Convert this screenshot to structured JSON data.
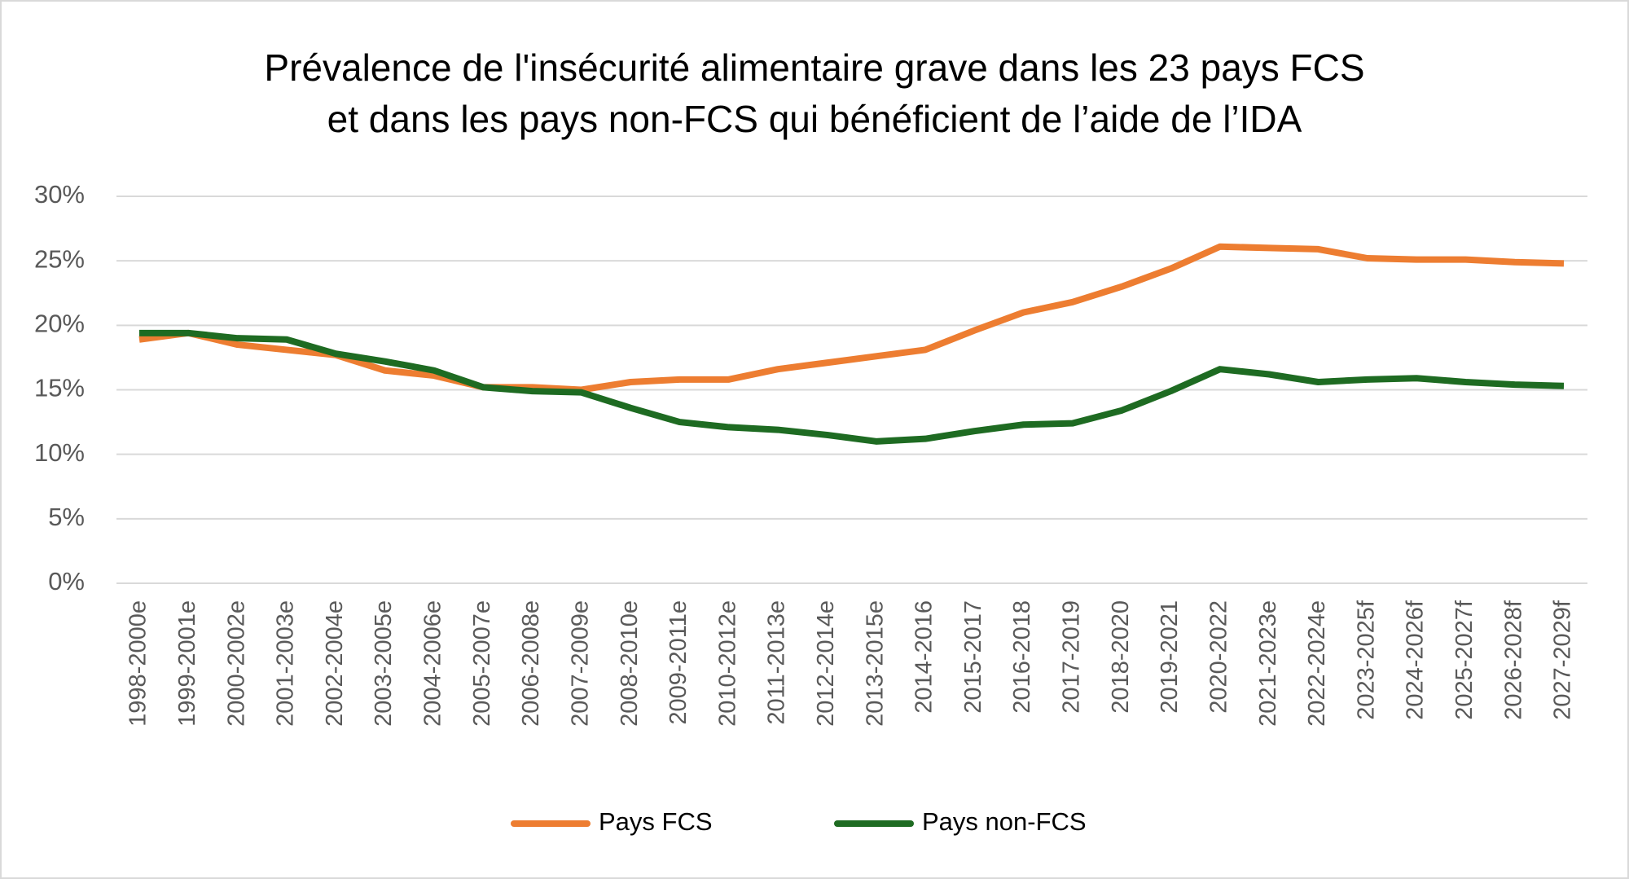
{
  "chart_data": {
    "type": "line",
    "title": [
      "Prévalence de l'insécurité alimentaire grave dans les 23 pays FCS",
      "et dans les pays non-FCS qui bénéficient de l’aide de l’IDA"
    ],
    "categories": [
      "1998-2000e",
      "1999-2001e",
      "2000-2002e",
      "2001-2003e",
      "2002-2004e",
      "2003-2005e",
      "2004-2006e",
      "2005-2007e",
      "2006-2008e",
      "2007-2009e",
      "2008-2010e",
      "2009-2011e",
      "2010-2012e",
      "2011-2013e",
      "2012-2014e",
      "2013-2015e",
      "2014-2016",
      "2015-2017",
      "2016-2018",
      "2017-2019",
      "2018-2020",
      "2019-2021",
      "2020-2022",
      "2021-2023e",
      "2022-2024e",
      "2023-2025f",
      "2024-2026f",
      "2025-2027f",
      "2026-2028f",
      "2027-2029f"
    ],
    "series": [
      {
        "name": "Pays FCS",
        "color": "#ed7d31",
        "values": [
          18.9,
          19.4,
          18.5,
          18.1,
          17.7,
          16.5,
          16.1,
          15.2,
          15.2,
          15.0,
          15.6,
          15.8,
          15.8,
          16.6,
          17.1,
          17.6,
          18.1,
          19.6,
          21.0,
          21.8,
          23.0,
          24.4,
          26.1,
          26.0,
          25.9,
          25.2,
          25.1,
          25.1,
          24.9,
          24.8
        ]
      },
      {
        "name": "Pays non-FCS",
        "color": "#1e6b22",
        "values": [
          19.4,
          19.4,
          19.0,
          18.9,
          17.8,
          17.2,
          16.5,
          15.2,
          14.9,
          14.8,
          13.6,
          12.5,
          12.1,
          11.9,
          11.5,
          11.0,
          11.2,
          11.8,
          12.3,
          12.4,
          13.4,
          14.9,
          16.6,
          16.2,
          15.6,
          15.8,
          15.9,
          15.6,
          15.4,
          15.3
        ]
      }
    ],
    "ylim": [
      0,
      30
    ],
    "yticks": [
      {
        "value": 0,
        "label": "0%"
      },
      {
        "value": 5,
        "label": "5%"
      },
      {
        "value": 10,
        "label": "10%"
      },
      {
        "value": 15,
        "label": "15%"
      },
      {
        "value": 20,
        "label": "20%"
      },
      {
        "value": 25,
        "label": "25%"
      },
      {
        "value": 30,
        "label": "30%"
      }
    ],
    "grid": true,
    "legend": "bottom"
  }
}
